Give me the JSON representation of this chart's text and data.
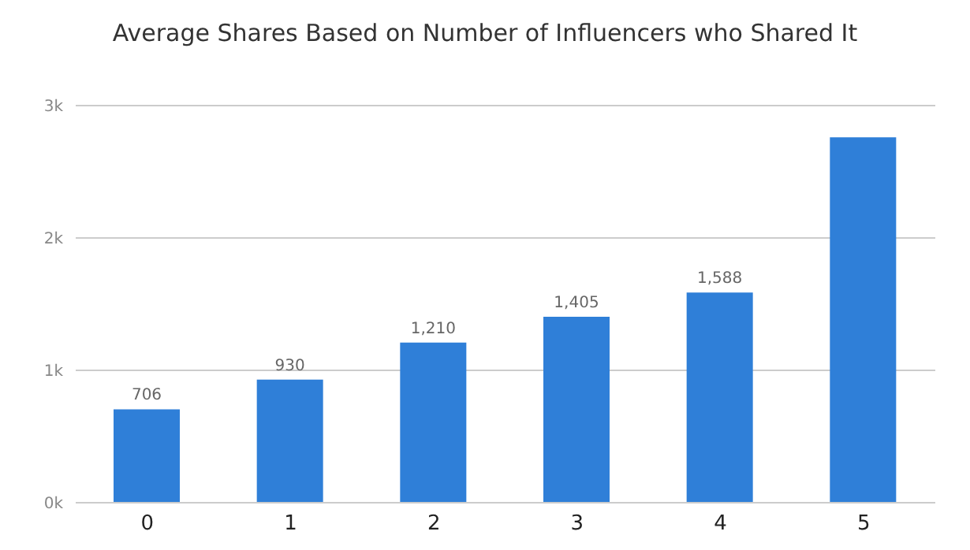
{
  "chart_data": {
    "type": "bar",
    "title": "Average Shares Based on Number of Influencers who Shared It",
    "categories": [
      "0",
      "1",
      "2",
      "3",
      "4",
      "5"
    ],
    "values": [
      706,
      930,
      1210,
      1405,
      1588,
      2760
    ],
    "value_labels": [
      "706",
      "930",
      "1,210",
      "1,405",
      "1,588",
      null
    ],
    "color": "#2f7fd8",
    "ylim": [
      0,
      3000
    ],
    "yticks": [
      {
        "value": 0,
        "label": "0k"
      },
      {
        "value": 1000,
        "label": "1k"
      },
      {
        "value": 2000,
        "label": "2k"
      },
      {
        "value": 3000,
        "label": "3k"
      }
    ],
    "grid": "y"
  }
}
